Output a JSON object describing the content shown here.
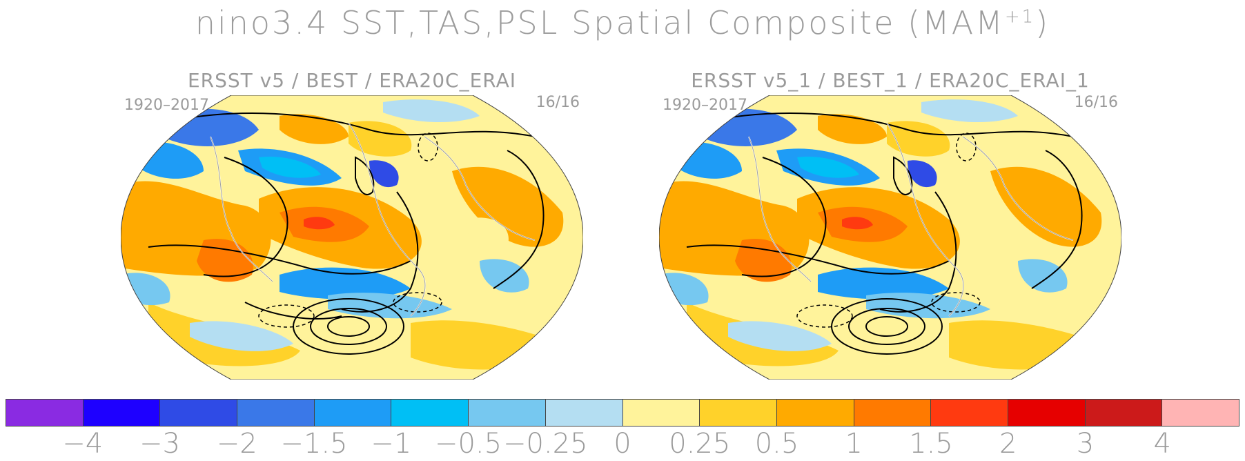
{
  "title": {
    "main": "nino3.4 SST,TAS,PSL Spatial Composite (MAM",
    "superscript": "+1",
    "close": ")"
  },
  "panels": [
    {
      "title": "ERSST v5 / BEST / ERA20C_ERAI",
      "years": "1920–2017",
      "count": "16/16"
    },
    {
      "title": "ERSST v5_1 / BEST_1 / ERA20C_ERAI_1",
      "years": "1920–2017",
      "count": "16/16"
    }
  ],
  "colorbar": {
    "colors": [
      "#8a2be2",
      "#1e00ff",
      "#2f4be6",
      "#3a78e8",
      "#1e9cf6",
      "#00bff5",
      "#76c8f0",
      "#b4def2",
      "#fff39b",
      "#ffd22a",
      "#ffaa00",
      "#ff7a00",
      "#ff3a10",
      "#e60000",
      "#cc1a1a",
      "#ffb4b4"
    ],
    "labels": [
      "−4",
      "−3",
      "−2",
      "−1.5",
      "−1",
      "−0.5",
      "−0.25",
      "0",
      "0.25",
      "0.5",
      "1",
      "1.5",
      "2",
      "3",
      "4"
    ]
  }
}
